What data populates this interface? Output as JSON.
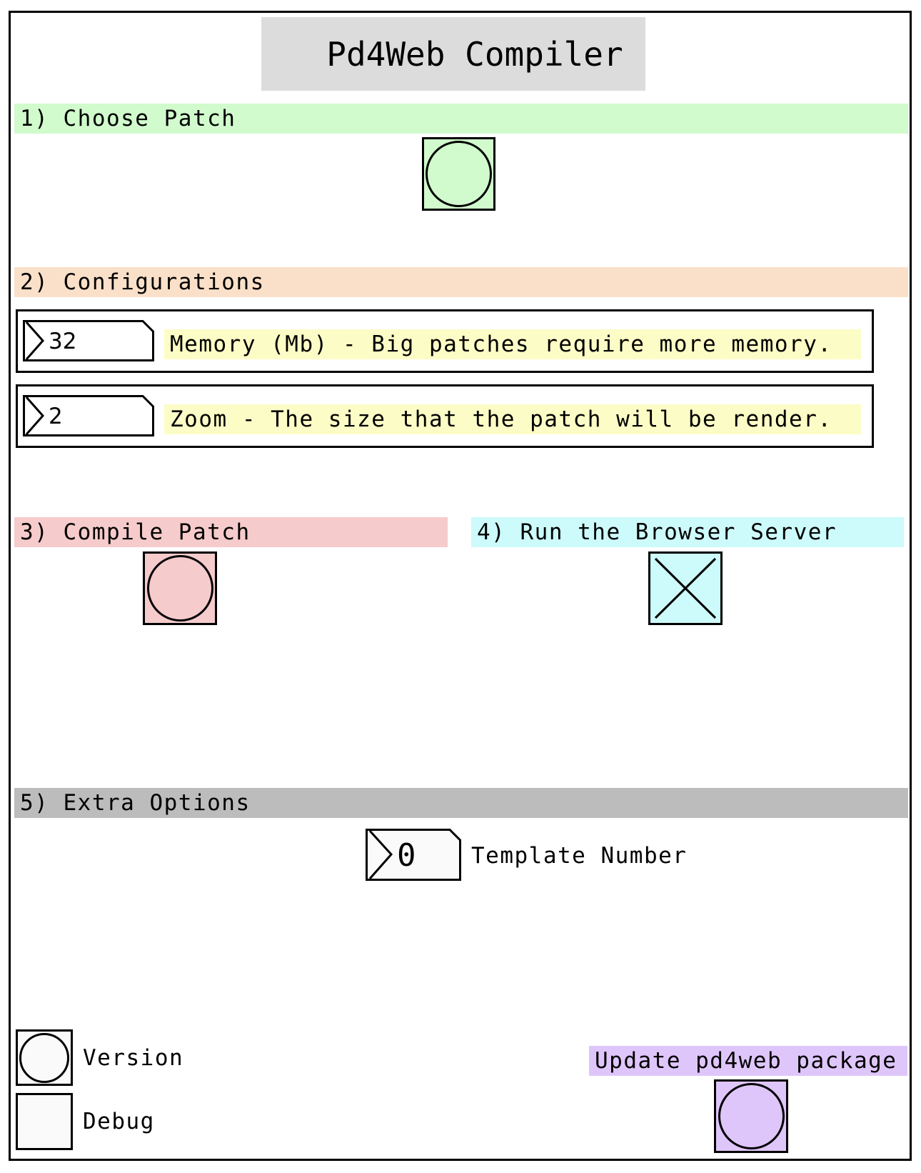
{
  "app": {
    "title": "Pd4Web Compiler"
  },
  "sections": {
    "choose": {
      "label": "1) Choose Patch",
      "color": "#d1fbcd"
    },
    "config": {
      "label": "2) Configurations",
      "color": "#fae0c9"
    },
    "compile": {
      "label": "3) Compile Patch",
      "color": "#f6cbcb"
    },
    "server": {
      "label": "4) Run the Browser Server",
      "color": "#cdfafa"
    },
    "extra": {
      "label": "5) Extra Options",
      "color": "#bcbcbc"
    }
  },
  "config": {
    "memory": {
      "value": "32",
      "label": "Memory (Mb) - Big patches require more memory."
    },
    "zoom": {
      "value": "2",
      "label": "Zoom - The size that the patch will be render."
    }
  },
  "server_toggle": {
    "checked": true
  },
  "template": {
    "value": "0",
    "label": "Template Number"
  },
  "footer": {
    "version_label": "Version",
    "debug_label": "Debug",
    "update_label": "Update pd4web package",
    "update_color": "#dfc6fa"
  },
  "icons": {
    "choose": "bang-circle-icon",
    "compile": "bang-circle-icon",
    "server": "toggle-x-icon",
    "version": "bang-circle-icon",
    "update": "bang-circle-icon"
  }
}
